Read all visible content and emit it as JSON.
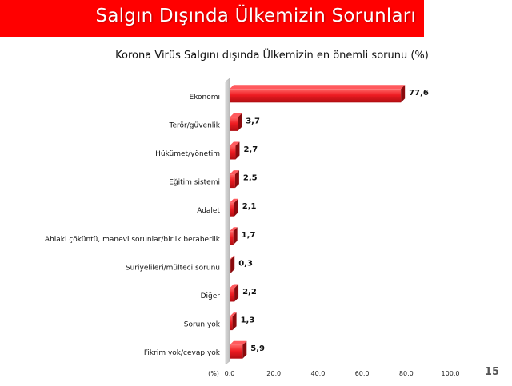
{
  "header": {
    "title": "Salgın Dışında Ülkemizin Sorunları"
  },
  "page_number": "15",
  "colors": {
    "header_bg": "#ff0000",
    "bar": "#e8141a",
    "bar_dark": "#8a0a0d"
  },
  "chart_data": {
    "type": "bar",
    "orientation": "horizontal",
    "title": "Korona Virüs Salgını dışında Ülkemizin en önemli sorunu (%)",
    "xlabel": "(%)",
    "categories": [
      "Ekonomi",
      "Terör/güvenlik",
      "Hükümet/yönetim",
      "Eğitim sistemi",
      "Adalet",
      "Ahlaki çöküntü, manevi sorunlar/birlik beraberlik",
      "Suriyelileri/mülteci sorunu",
      "Diğer",
      "Sorun yok",
      "Fikrim yok/cevap yok"
    ],
    "values": [
      77.6,
      3.7,
      2.7,
      2.5,
      2.1,
      1.7,
      0.3,
      2.2,
      1.3,
      5.9
    ],
    "value_labels": [
      "77,6",
      "3,7",
      "2,7",
      "2,5",
      "2,1",
      "1,7",
      "0,3",
      "2,2",
      "1,3",
      "5,9"
    ],
    "xlim": [
      0,
      100
    ],
    "x_ticks": [
      "0,0",
      "20,0",
      "40,0",
      "60,0",
      "80,0",
      "100,0"
    ],
    "grid": false,
    "legend": "none"
  }
}
